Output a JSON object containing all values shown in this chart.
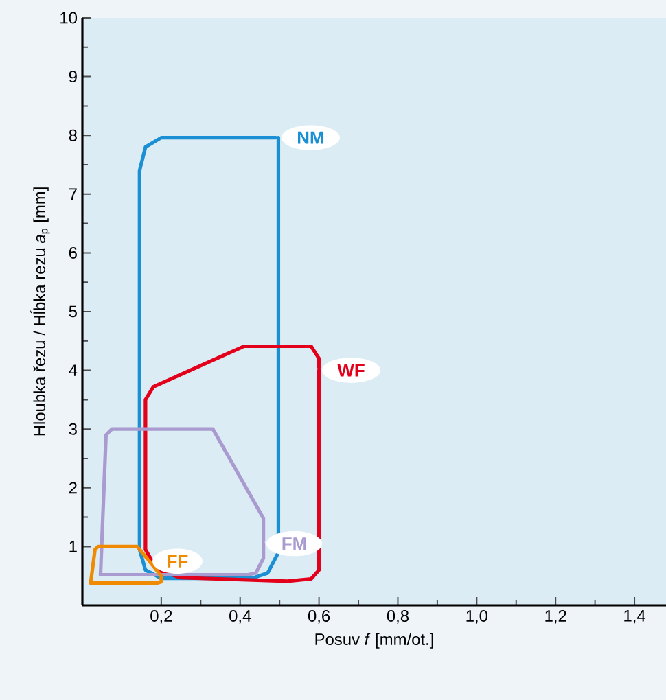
{
  "chart_data": {
    "type": "line",
    "xlabel": "Posuv *f* [mm/ot.]",
    "ylabel": "Hloubka řezu / Hĺbka rezu *a*$_{p}$ [mm]",
    "xlim": [
      0,
      1.48
    ],
    "ylim": [
      0,
      10
    ],
    "xticks": [
      {
        "value": 0.2,
        "label": "0,2"
      },
      {
        "value": 0.4,
        "label": "0,4"
      },
      {
        "value": 0.6,
        "label": "0,6"
      },
      {
        "value": 0.8,
        "label": "0,8"
      },
      {
        "value": 1.0,
        "label": "1,0"
      },
      {
        "value": 1.2,
        "label": "1,2"
      },
      {
        "value": 1.4,
        "label": "1,4"
      }
    ],
    "yticks": [
      1,
      2,
      3,
      4,
      5,
      6,
      7,
      8,
      9,
      10
    ],
    "grid": false,
    "legend": false,
    "marker": "none",
    "line_style": "solid",
    "series": [
      {
        "name": "NM",
        "color": "#1a8fd4",
        "x": [
          0.497,
          0.497,
          0.47,
          0.43,
          0.2,
          0.16,
          0.145,
          0.145,
          0.16,
          0.2,
          0.49
        ],
        "values": [
          7.96,
          0.9,
          0.55,
          0.46,
          0.46,
          0.6,
          0.95,
          7.4,
          7.8,
          7.96,
          7.96
        ]
      },
      {
        "name": "WF",
        "color": "#e2001a",
        "x": [
          0.6,
          0.6,
          0.58,
          0.52,
          0.25,
          0.19,
          0.16,
          0.16,
          0.18,
          0.41,
          0.58,
          0.6,
          0.6
        ],
        "values": [
          4.0,
          0.6,
          0.45,
          0.41,
          0.47,
          0.6,
          0.95,
          3.5,
          3.72,
          4.41,
          4.41,
          4.2,
          4.05
        ]
      },
      {
        "name": "FM",
        "color": "#a99bcf",
        "x": [
          0.459,
          0.459,
          0.44,
          0.42,
          0.046,
          0.06,
          0.075,
          0.331,
          0.459,
          0.459
        ],
        "values": [
          1.05,
          0.8,
          0.55,
          0.52,
          0.52,
          2.9,
          3.0,
          3.0,
          1.48,
          1.1
        ]
      },
      {
        "name": "FF",
        "color": "#f08a00",
        "x": [
          0.17,
          0.2,
          0.2,
          0.19,
          0.021,
          0.032,
          0.04,
          0.139,
          0.165
        ],
        "values": [
          0.75,
          0.5,
          0.4,
          0.38,
          0.38,
          0.95,
          1.0,
          1.0,
          0.79
        ]
      }
    ]
  }
}
